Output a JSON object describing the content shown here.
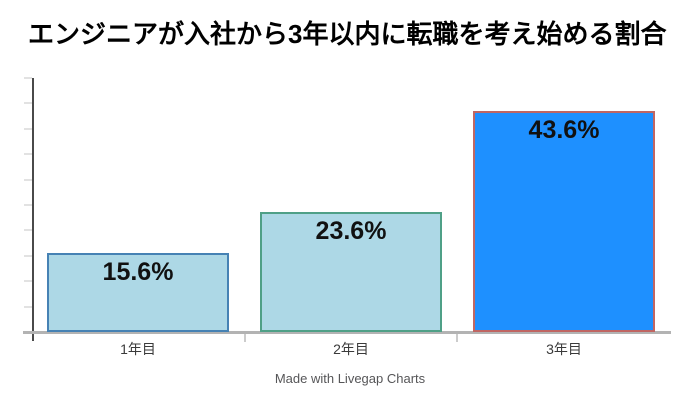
{
  "footer": "Made with Livegap Charts",
  "chart_data": {
    "type": "bar",
    "title": "エンジニアが入社から3年以内に転職を考え始める割合",
    "categories": [
      "1年目",
      "2年目",
      "3年目"
    ],
    "values": [
      15.6,
      23.6,
      43.6
    ],
    "value_labels": [
      "15.6%",
      "23.6%",
      "43.6%"
    ],
    "xlabel": "",
    "ylabel": "",
    "ylim": [
      0,
      50
    ],
    "y_tick_step": 5,
    "grid": false,
    "legend": "none",
    "bars": [
      {
        "fill": "#ADD8E6",
        "border": "#4682B4"
      },
      {
        "fill": "#ADD8E6",
        "border": "#4FA087"
      },
      {
        "fill": "#1E90FF",
        "border": "#C06663"
      }
    ],
    "colors": {
      "y_axis": "#4a4a4a",
      "x_axis": "#b3b3b3",
      "y_tick": "#e2e2e2",
      "x_tick": "#cccccc",
      "title_text": "#000000",
      "value_label_text": "#111111",
      "category_label_text": "#3a3a3a",
      "footer_text": "#565658",
      "background": "#ffffff"
    }
  }
}
